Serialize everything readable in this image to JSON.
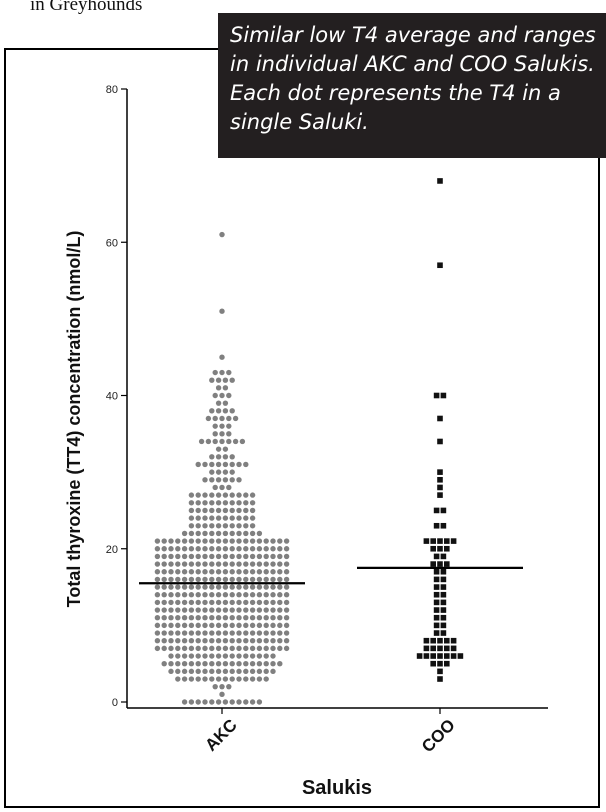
{
  "page": {
    "caption_fragment": "in Greyhounds",
    "callout": "Similar low T4 average and ranges in individual AKC and COO Salukis. Each dot represents the T4 in a single Saluki."
  },
  "chart_data": {
    "type": "scatter",
    "title": "",
    "xlabel": "Salukis",
    "ylabel": "Total thyroxine (TT4) concentration (nmol/L)",
    "categories": [
      "AKC",
      "COO"
    ],
    "ylim": [
      0,
      80
    ],
    "yticks": [
      0,
      20,
      40,
      60,
      80
    ],
    "grid": false,
    "series": [
      {
        "name": "AKC",
        "marker": "circle",
        "color": "#808080",
        "mean": 15.5,
        "values": [
          0,
          0,
          0,
          0,
          0,
          0,
          0,
          0,
          0,
          0,
          0,
          0,
          1,
          2,
          2,
          2,
          3,
          3,
          3,
          3,
          3,
          3,
          3,
          3,
          3,
          3,
          3,
          3,
          3,
          3,
          4,
          4,
          4,
          4,
          4,
          4,
          4,
          4,
          4,
          4,
          4,
          4,
          4,
          4,
          4,
          4,
          5,
          5,
          5,
          5,
          5,
          5,
          5,
          5,
          5,
          5,
          5,
          5,
          5,
          5,
          5,
          5,
          5,
          5,
          6,
          6,
          6,
          6,
          6,
          6,
          6,
          6,
          6,
          6,
          6,
          6,
          6,
          6,
          6,
          6,
          7,
          7,
          7,
          7,
          7,
          7,
          7,
          7,
          7,
          7,
          7,
          7,
          7,
          7,
          7,
          7,
          7,
          7,
          7,
          7,
          8,
          8,
          8,
          8,
          8,
          8,
          8,
          8,
          8,
          8,
          8,
          8,
          8,
          8,
          8,
          8,
          8,
          8,
          8,
          8,
          9,
          9,
          9,
          9,
          9,
          9,
          9,
          9,
          9,
          9,
          9,
          9,
          9,
          9,
          9,
          9,
          9,
          9,
          9,
          9,
          10,
          10,
          10,
          10,
          10,
          10,
          10,
          10,
          10,
          10,
          10,
          10,
          10,
          10,
          10,
          10,
          10,
          10,
          10,
          10,
          11,
          11,
          11,
          11,
          11,
          11,
          11,
          11,
          11,
          11,
          11,
          11,
          11,
          11,
          11,
          11,
          11,
          11,
          11,
          11,
          12,
          12,
          12,
          12,
          12,
          12,
          12,
          12,
          12,
          12,
          12,
          12,
          12,
          12,
          12,
          12,
          12,
          12,
          12,
          12,
          13,
          13,
          13,
          13,
          13,
          13,
          13,
          13,
          13,
          13,
          13,
          13,
          13,
          13,
          13,
          13,
          13,
          13,
          13,
          13,
          14,
          14,
          14,
          14,
          14,
          14,
          14,
          14,
          14,
          14,
          14,
          14,
          14,
          14,
          14,
          14,
          14,
          14,
          14,
          14,
          15,
          15,
          15,
          15,
          15,
          15,
          15,
          15,
          15,
          15,
          15,
          15,
          15,
          15,
          15,
          15,
          15,
          15,
          15,
          15,
          16,
          16,
          16,
          16,
          16,
          16,
          16,
          16,
          16,
          16,
          16,
          16,
          16,
          16,
          16,
          16,
          16,
          16,
          16,
          16,
          17,
          17,
          17,
          17,
          17,
          17,
          17,
          17,
          17,
          17,
          17,
          17,
          17,
          17,
          17,
          17,
          17,
          17,
          17,
          17,
          18,
          18,
          18,
          18,
          18,
          18,
          18,
          18,
          18,
          18,
          18,
          18,
          18,
          18,
          18,
          18,
          18,
          18,
          18,
          18,
          19,
          19,
          19,
          19,
          19,
          19,
          19,
          19,
          19,
          19,
          19,
          19,
          19,
          19,
          19,
          19,
          19,
          19,
          19,
          19,
          20,
          20,
          20,
          20,
          20,
          20,
          20,
          20,
          20,
          20,
          20,
          20,
          20,
          20,
          20,
          20,
          20,
          20,
          20,
          20,
          21,
          21,
          21,
          21,
          21,
          21,
          21,
          21,
          21,
          21,
          21,
          21,
          21,
          21,
          21,
          21,
          21,
          21,
          21,
          21,
          22,
          22,
          22,
          22,
          22,
          22,
          22,
          22,
          22,
          22,
          22,
          22,
          23,
          23,
          23,
          23,
          23,
          23,
          23,
          23,
          23,
          23,
          24,
          24,
          24,
          24,
          24,
          24,
          24,
          24,
          24,
          24,
          25,
          25,
          25,
          25,
          25,
          25,
          25,
          25,
          25,
          25,
          26,
          26,
          26,
          26,
          26,
          26,
          26,
          26,
          26,
          26,
          27,
          27,
          27,
          27,
          27,
          27,
          27,
          27,
          27,
          27,
          28,
          28,
          28,
          29,
          29,
          29,
          29,
          29,
          29,
          30,
          30,
          30,
          30,
          31,
          31,
          31,
          31,
          31,
          31,
          31,
          31,
          32,
          32,
          32,
          32,
          33,
          33,
          34,
          34,
          34,
          34,
          34,
          34,
          34,
          35,
          35,
          35,
          36,
          36,
          36,
          37,
          37,
          37,
          37,
          37,
          38,
          38,
          38,
          38,
          39,
          39,
          40,
          40,
          40,
          41,
          41,
          42,
          42,
          42,
          42,
          43,
          43,
          43,
          45,
          51,
          61
        ]
      },
      {
        "name": "COO",
        "marker": "square",
        "color": "#111111",
        "mean": 17.5,
        "values": [
          3,
          4,
          5,
          5,
          5,
          6,
          6,
          6,
          6,
          6,
          6,
          6,
          7,
          7,
          7,
          7,
          7,
          8,
          8,
          8,
          8,
          8,
          9,
          9,
          10,
          10,
          11,
          11,
          12,
          12,
          13,
          13,
          14,
          14,
          15,
          15,
          16,
          16,
          17,
          17,
          18,
          18,
          18,
          19,
          19,
          20,
          20,
          20,
          21,
          21,
          21,
          21,
          21,
          23,
          23,
          25,
          25,
          27,
          28,
          29,
          30,
          34,
          37,
          40,
          40,
          57,
          68
        ]
      }
    ]
  }
}
